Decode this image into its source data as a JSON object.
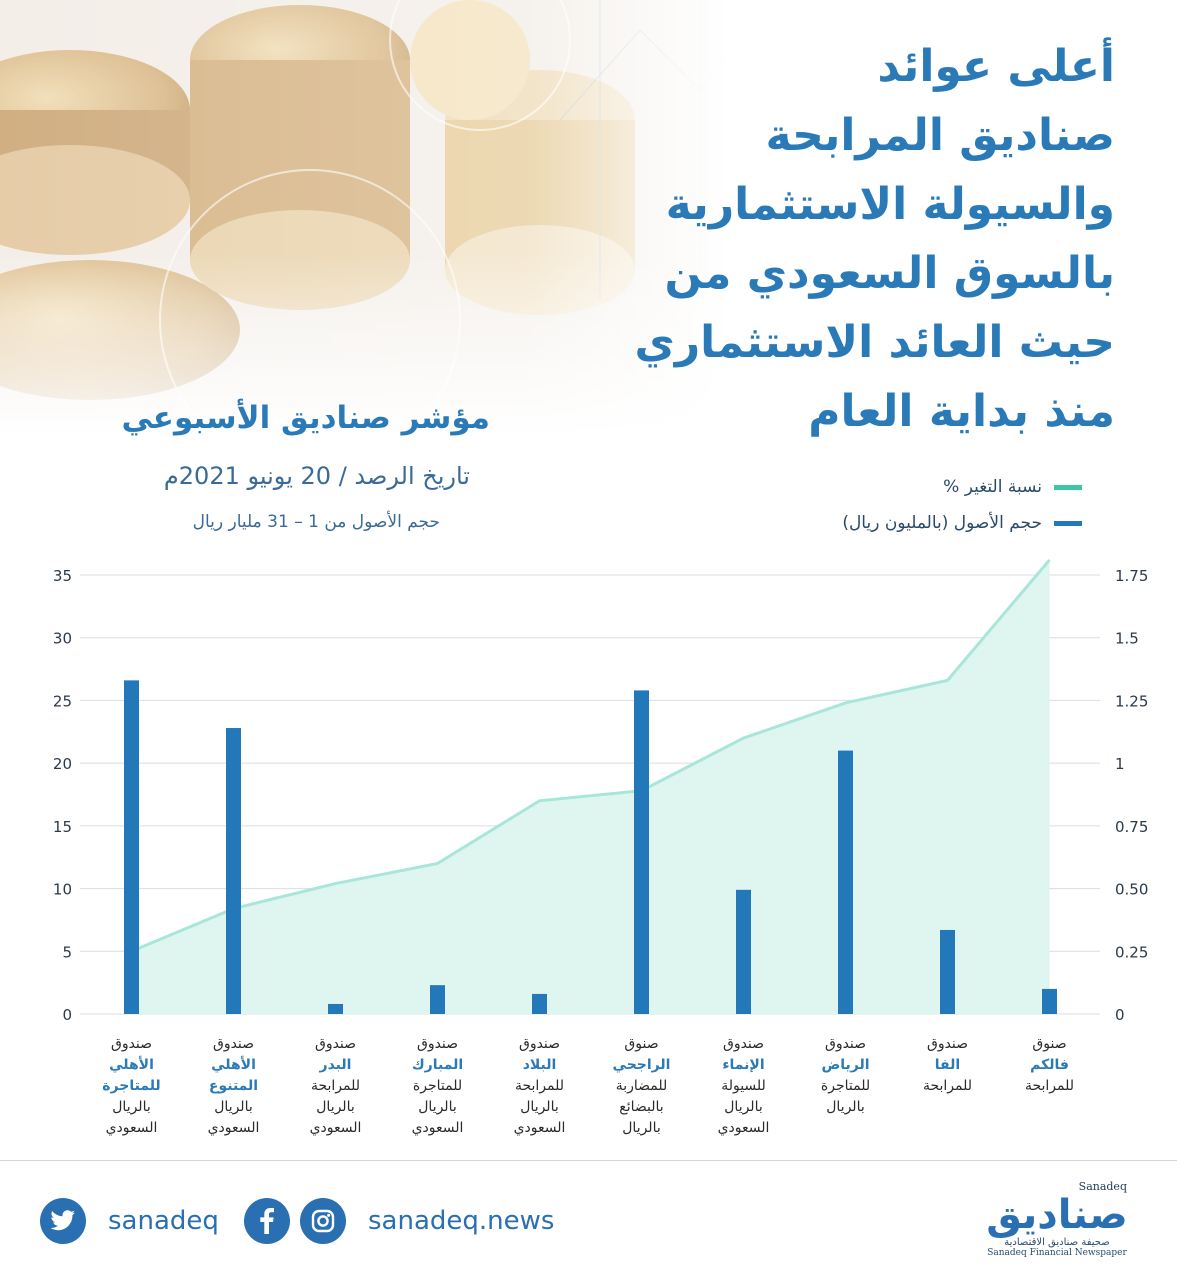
{
  "header": {
    "title_lines": [
      "أعلى عوائد",
      "صناديق المرابحة",
      "والسيولة الاستثمارية",
      "بالسوق السعودي من",
      "حيث العائد الاستثماري",
      "منذ بداية العام"
    ]
  },
  "index": {
    "title": "مؤشر صناديق الأسبوعي",
    "date": "تاريخ الرصد / 20 يونيو 2021م",
    "range": "حجم الأصول من 1 – 31 مليار ريال"
  },
  "legend": {
    "change": "نسبة التغير %",
    "assets": "حجم الأصول (بالمليون ريال)"
  },
  "colors": {
    "bar": "#2378b9",
    "line": "#a8e6da",
    "area": "#dff5f0",
    "accent": "#2a7ab8"
  },
  "chart_data": {
    "type": "bar",
    "left_axis": {
      "ticks": [
        "35",
        "30",
        "25",
        "20",
        "15",
        "10",
        "5",
        "0"
      ],
      "range": [
        0,
        35
      ]
    },
    "right_axis": {
      "ticks": [
        "1.75",
        "1.5",
        "1.25",
        "1",
        "0.75",
        "0.50",
        "0.25",
        "0"
      ],
      "range": [
        0,
        1.75
      ]
    },
    "categories": [
      {
        "line1": "صندوق",
        "name": "الأهلي للمتاجرة",
        "rest": [
          "بالريال",
          "السعودي"
        ]
      },
      {
        "line1": "صندوق",
        "name": "الأهلي المتنوع",
        "rest": [
          "بالريال",
          "السعودي"
        ]
      },
      {
        "line1": "صندوق",
        "name": "البدر",
        "rest": [
          "للمرابحة",
          "بالريال",
          "السعودي"
        ]
      },
      {
        "line1": "صندوق",
        "name": "المبارك",
        "rest": [
          "للمتاجرة",
          "بالريال",
          "السعودي"
        ]
      },
      {
        "line1": "صندوق",
        "name": "البلاد",
        "rest": [
          "للمرابحة",
          "بالريال",
          "السعودي"
        ]
      },
      {
        "line1": "صنوق",
        "name": "الراجحي",
        "rest": [
          "للمضاربة",
          "بالبضائع",
          "بالريال"
        ]
      },
      {
        "line1": "صندوق",
        "name": "الإنماء",
        "rest": [
          "للسيولة",
          "بالريال",
          "السعودي"
        ]
      },
      {
        "line1": "صندوق",
        "name": "الرياض",
        "rest": [
          "للمتاجرة",
          "بالريال"
        ]
      },
      {
        "line1": "صندوق",
        "name": "الفا",
        "rest": [
          "للمرابحة"
        ]
      },
      {
        "line1": "صنوق",
        "name": "فالكم",
        "rest": [
          "للمرابحة"
        ]
      }
    ],
    "series": [
      {
        "name": "حجم الأصول (بالمليون ريال)",
        "axis": "left",
        "type": "bar",
        "values": [
          26.6,
          22.8,
          0.8,
          2.3,
          1.6,
          25.8,
          9.9,
          21.0,
          6.7,
          2.0
        ]
      },
      {
        "name": "نسبة التغير %",
        "axis": "right",
        "type": "area",
        "values": [
          0.25,
          0.42,
          0.52,
          0.6,
          0.85,
          0.89,
          1.1,
          1.24,
          1.33,
          1.81
        ]
      }
    ],
    "grid": true
  },
  "footer": {
    "twitter": "sanadeq",
    "web": "sanadeq.news",
    "logo_en": "Sanadeq",
    "logo_ar": "صناديق",
    "logo_sub_ar": "صحيفة صناديق الاقتصادية",
    "logo_sub_en": "Sanadeq Financial Newspaper"
  }
}
